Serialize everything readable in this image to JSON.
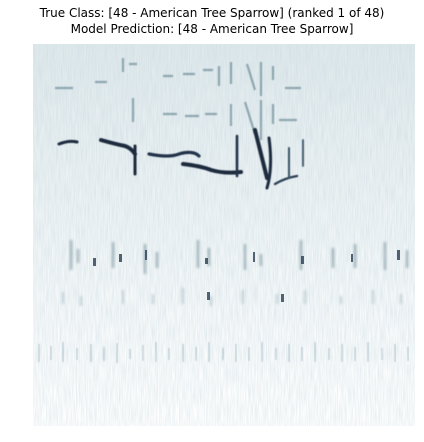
{
  "title": {
    "true_class": "True Class: [48 - American Tree Sparrow] (ranked 1 of 48)",
    "prediction": "Model Prediction: [48 - American Tree Sparrow]"
  },
  "colors": {
    "background": "#ffffff",
    "spectrogram_light": "#e8f0f2",
    "spectrogram_mid": "#9ab3bd",
    "spectrogram_dark": "#1e2b3d"
  }
}
